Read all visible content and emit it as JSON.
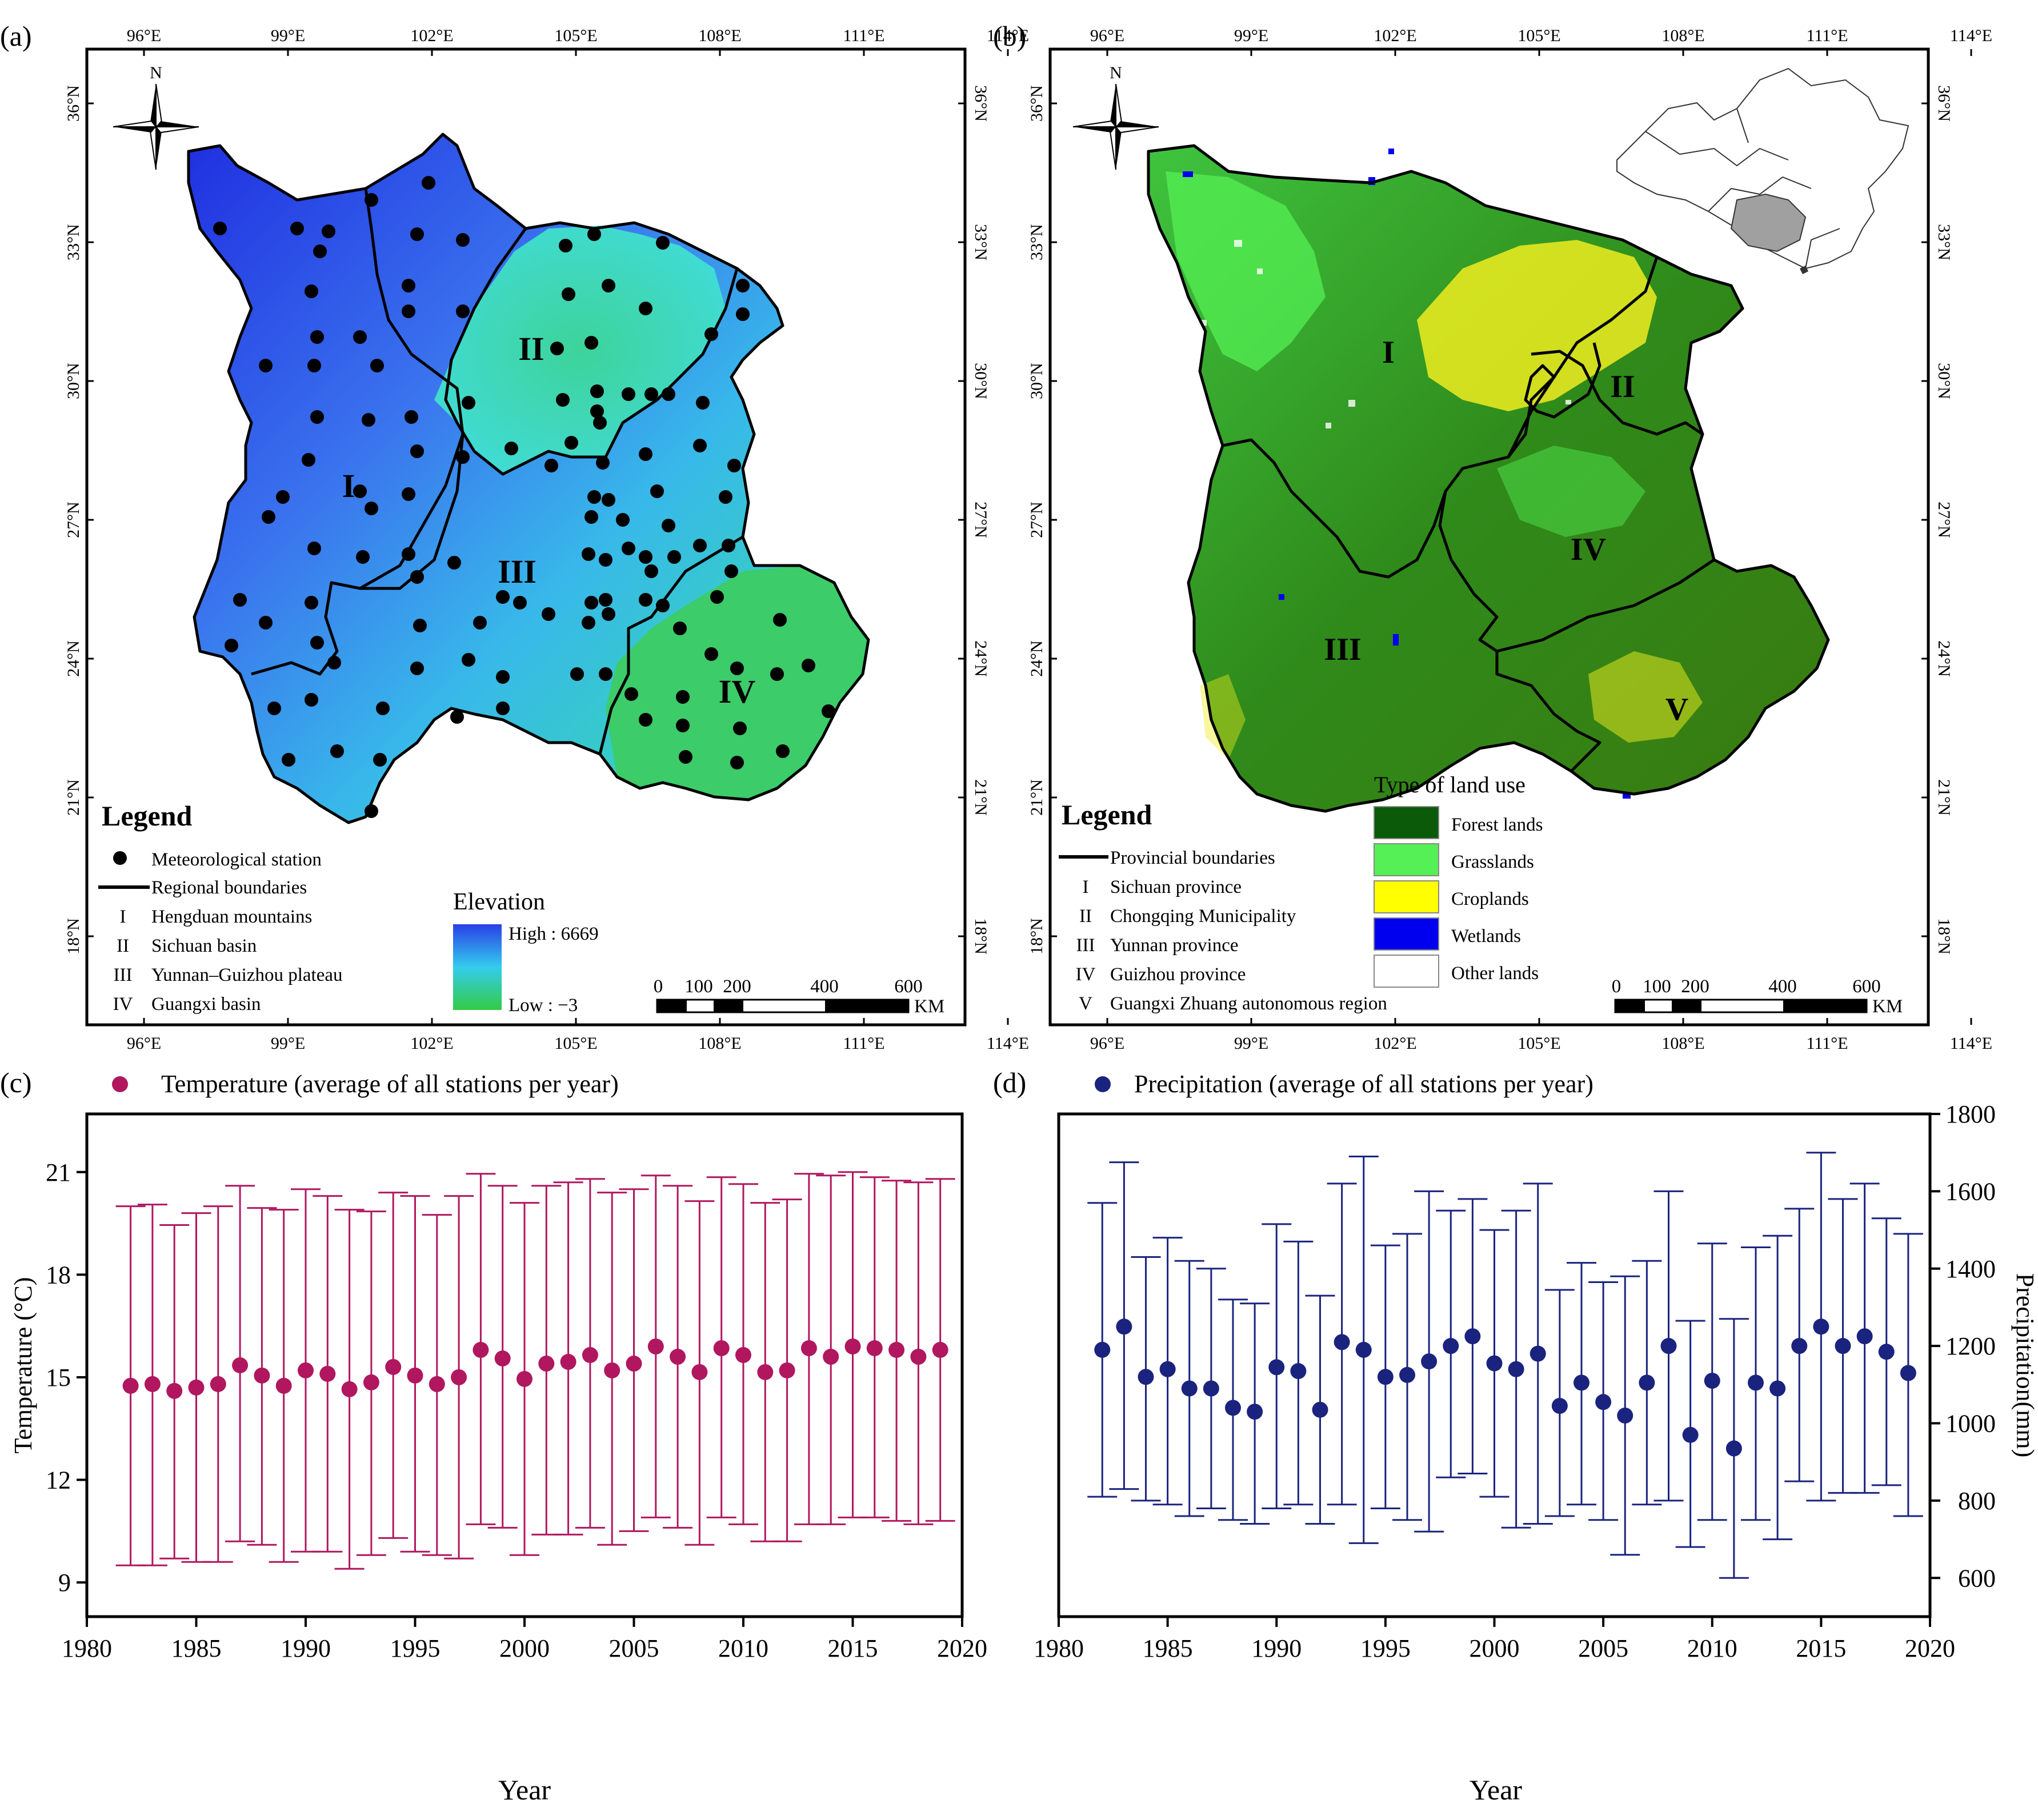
{
  "panels": {
    "a": {
      "label": "(a)",
      "lon_ticks": [
        "96°E",
        "99°E",
        "102°E",
        "105°E",
        "108°E",
        "111°E",
        "114°E"
      ],
      "lat_ticks": [
        "36°N",
        "33°N",
        "30°N",
        "27°N",
        "24°N",
        "21°N",
        "18°N"
      ],
      "region_labels": [
        "I",
        "II",
        "III",
        "IV"
      ],
      "north": "N",
      "legend": {
        "title": "Legend",
        "items": [
          "Meteorological station",
          "Regional boundaries"
        ],
        "regions": [
          {
            "numeral": "I",
            "name": "Hengduan mountains"
          },
          {
            "numeral": "II",
            "name": "Sichuan basin"
          },
          {
            "numeral": "III",
            "name": "Yunnan–Guizhou plateau"
          },
          {
            "numeral": "IV",
            "name": "Guangxi basin"
          }
        ],
        "elevation_title": "Elevation",
        "elevation_high": "High : 6669",
        "elevation_low": "Low : −3",
        "colors": {
          "high": "#2a3fe6",
          "mid": "#33ccee",
          "low": "#33cc44"
        }
      },
      "scale": {
        "ticks": [
          "0",
          "100",
          "200",
          "400",
          "600"
        ],
        "unit": "KM"
      }
    },
    "b": {
      "label": "(b)",
      "lon_ticks": [
        "96°E",
        "99°E",
        "102°E",
        "105°E",
        "108°E",
        "111°E",
        "114°E"
      ],
      "lat_ticks": [
        "36°N",
        "33°N",
        "30°N",
        "27°N",
        "24°N",
        "21°N",
        "18°N"
      ],
      "region_labels": [
        "I",
        "II",
        "III",
        "IV",
        "V"
      ],
      "north": "N",
      "legend": {
        "title": "Legend",
        "boundary": "Provincial boundaries",
        "regions": [
          {
            "numeral": "I",
            "name": "Sichuan province"
          },
          {
            "numeral": "II",
            "name": "Chongqing Municipality"
          },
          {
            "numeral": "III",
            "name": "Yunnan province"
          },
          {
            "numeral": "IV",
            "name": "Guizhou province"
          },
          {
            "numeral": "V",
            "name": "Guangxi Zhuang autonomous region"
          }
        ],
        "landuse_title": "Type of land use",
        "landuse": [
          {
            "name": "Forest lands",
            "color": "#0a5a0a"
          },
          {
            "name": "Grasslands",
            "color": "#55f055"
          },
          {
            "name": "Croplands",
            "color": "#ffff00"
          },
          {
            "name": "Wetlands",
            "color": "#0000ee"
          },
          {
            "name": "Other lands",
            "color": "#ffffff"
          }
        ]
      },
      "scale": {
        "ticks": [
          "0",
          "100",
          "200",
          "400",
          "600"
        ],
        "unit": "KM"
      }
    }
  },
  "chart_data": [
    {
      "panel": "(c)",
      "type": "scatter",
      "error_bars": true,
      "title": "Temperature (average of all stations per year)",
      "xlabel": "Year",
      "ylabel": "Temperature (°C)",
      "xlim": [
        1980,
        2020
      ],
      "ylim": [
        8,
        22.7
      ],
      "xticks": [
        1980,
        1985,
        1990,
        1995,
        2000,
        2005,
        2010,
        2015,
        2020
      ],
      "yticks": [
        9,
        12,
        15,
        18,
        21
      ],
      "color": "#b0175f",
      "series": [
        {
          "name": "Temperature",
          "x": [
            1982,
            1983,
            1984,
            1985,
            1986,
            1987,
            1988,
            1989,
            1990,
            1991,
            1992,
            1993,
            1994,
            1995,
            1996,
            1997,
            1998,
            1999,
            2000,
            2001,
            2002,
            2003,
            2004,
            2005,
            2006,
            2007,
            2008,
            2009,
            2010,
            2011,
            2012,
            2013,
            2014,
            2015,
            2016,
            2017,
            2018,
            2019
          ],
          "y": [
            14.75,
            14.8,
            14.6,
            14.7,
            14.8,
            15.35,
            15.05,
            14.75,
            15.2,
            15.1,
            14.65,
            14.85,
            15.3,
            15.05,
            14.8,
            15.0,
            15.8,
            15.55,
            14.95,
            15.4,
            15.45,
            15.65,
            15.2,
            15.4,
            15.9,
            15.6,
            15.15,
            15.85,
            15.65,
            15.15,
            15.2,
            15.85,
            15.6,
            15.9,
            15.85,
            15.8,
            15.6,
            15.8
          ],
          "y_lower": [
            9.5,
            9.5,
            9.7,
            9.6,
            9.6,
            10.2,
            10.1,
            9.6,
            9.9,
            9.9,
            9.4,
            9.8,
            10.3,
            9.9,
            9.8,
            9.7,
            10.7,
            10.6,
            9.8,
            10.4,
            10.4,
            10.6,
            10.1,
            10.5,
            10.9,
            10.6,
            10.1,
            10.9,
            10.7,
            10.2,
            10.2,
            10.7,
            10.7,
            10.9,
            10.9,
            10.8,
            10.7,
            10.8
          ],
          "y_upper": [
            20.0,
            20.05,
            19.45,
            19.8,
            20.0,
            20.6,
            19.95,
            19.9,
            20.5,
            20.3,
            19.9,
            19.85,
            20.4,
            20.3,
            19.75,
            20.3,
            20.95,
            20.6,
            20.1,
            20.6,
            20.7,
            20.8,
            20.4,
            20.5,
            20.9,
            20.6,
            20.15,
            20.85,
            20.65,
            20.1,
            20.2,
            20.95,
            20.9,
            21.0,
            20.85,
            20.75,
            20.7,
            20.8
          ]
        }
      ]
    },
    {
      "panel": "(d)",
      "type": "scatter",
      "error_bars": true,
      "title": "Precipitation (average of all stations per year)",
      "xlabel": "Year",
      "ylabel": "Precipitation(mm)",
      "xlim": [
        1980,
        2020
      ],
      "ylim": [
        500,
        1800
      ],
      "xticks": [
        1980,
        1985,
        1990,
        1995,
        2000,
        2005,
        2010,
        2015,
        2020
      ],
      "yticks": [
        600,
        800,
        1000,
        1200,
        1400,
        1600,
        1800
      ],
      "color": "#1a237e",
      "series": [
        {
          "name": "Precipitation",
          "x": [
            1982,
            1983,
            1984,
            1985,
            1986,
            1987,
            1988,
            1989,
            1990,
            1991,
            1992,
            1993,
            1994,
            1995,
            1996,
            1997,
            1998,
            1999,
            2000,
            2001,
            2002,
            2003,
            2004,
            2005,
            2006,
            2007,
            2008,
            2009,
            2010,
            2011,
            2012,
            2013,
            2014,
            2015,
            2016,
            2017,
            2018,
            2019
          ],
          "y": [
            1190,
            1250,
            1120,
            1140,
            1090,
            1090,
            1040,
            1030,
            1145,
            1135,
            1035,
            1210,
            1190,
            1120,
            1125,
            1160,
            1200,
            1225,
            1155,
            1140,
            1180,
            1045,
            1105,
            1055,
            1020,
            1105,
            1200,
            970,
            1110,
            935,
            1105,
            1090,
            1200,
            1250,
            1200,
            1225,
            1185,
            1130
          ],
          "y_lower": [
            810,
            830,
            800,
            790,
            760,
            780,
            750,
            740,
            780,
            790,
            740,
            790,
            690,
            780,
            750,
            720,
            860,
            870,
            810,
            730,
            740,
            760,
            790,
            750,
            660,
            790,
            800,
            680,
            750,
            600,
            750,
            700,
            850,
            800,
            820,
            820,
            840,
            760
          ],
          "y_upper": [
            1570,
            1675,
            1430,
            1480,
            1420,
            1400,
            1320,
            1310,
            1515,
            1470,
            1330,
            1620,
            1690,
            1460,
            1490,
            1600,
            1550,
            1580,
            1500,
            1550,
            1620,
            1345,
            1415,
            1365,
            1380,
            1420,
            1600,
            1265,
            1465,
            1270,
            1455,
            1485,
            1555,
            1700,
            1580,
            1620,
            1530,
            1490
          ]
        }
      ]
    }
  ]
}
